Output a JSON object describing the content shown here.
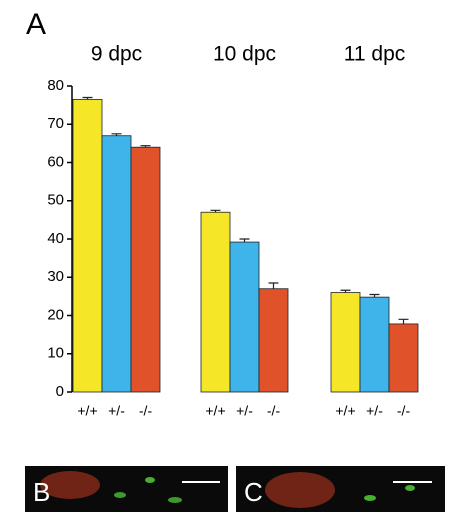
{
  "panel_labels": [
    "A",
    "B",
    "C"
  ],
  "chart_data": {
    "type": "bar",
    "categories": [
      "9 dpc",
      "10 dpc",
      "11 dpc"
    ],
    "series": [
      {
        "name": "+/+",
        "color": "#f5e628",
        "values": [
          76.5,
          47,
          26
        ],
        "errors": [
          0.5,
          0.5,
          0.6
        ]
      },
      {
        "name": "+/-",
        "color": "#3fb4ea",
        "values": [
          67,
          39.2,
          24.8
        ],
        "errors": [
          0.5,
          0.8,
          0.7
        ]
      },
      {
        "name": "-/-",
        "color": "#e0522a",
        "values": [
          64,
          27,
          17.8
        ],
        "errors": [
          0.4,
          1.5,
          1.2
        ]
      }
    ],
    "ylim": [
      0,
      80
    ],
    "yticks": [
      0,
      10,
      20,
      30,
      40,
      50,
      60,
      70,
      80
    ]
  }
}
